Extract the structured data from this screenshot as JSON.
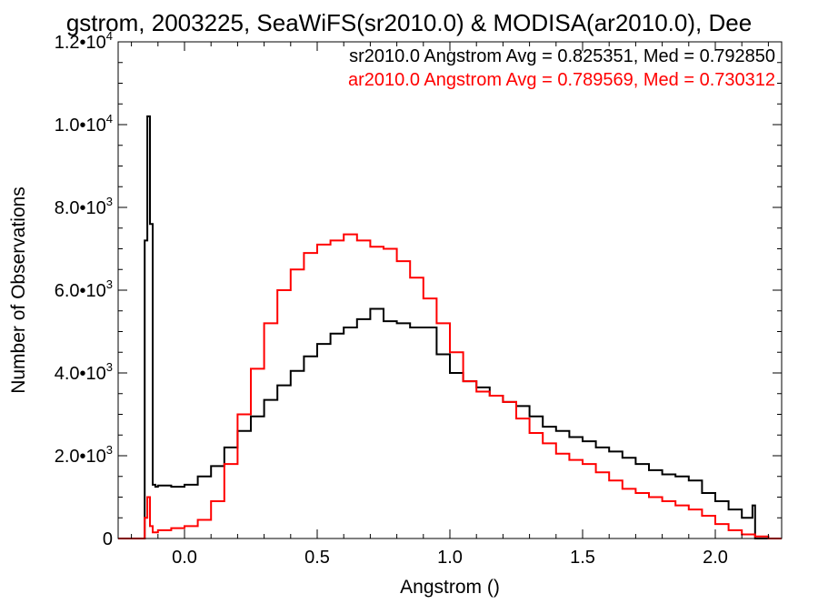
{
  "chart_data": {
    "type": "line",
    "title": "gstrom, 2003225, SeaWiFS(sr2010.0) & MODISA(ar2010.0), Dee",
    "xlabel": "Angstrom ()",
    "ylabel": "Number of Observations",
    "xlim": [
      -0.25,
      2.25
    ],
    "ylim": [
      0,
      12000
    ],
    "x_ticks": [
      {
        "value": 0.0,
        "label": "0.0"
      },
      {
        "value": 0.5,
        "label": "0.5"
      },
      {
        "value": 1.0,
        "label": "1.0"
      },
      {
        "value": 1.5,
        "label": "1.5"
      },
      {
        "value": 2.0,
        "label": "2.0"
      }
    ],
    "y_ticks": [
      {
        "value": 0,
        "label": "0",
        "exp": ""
      },
      {
        "value": 2000,
        "label": "2.0•10",
        "exp": "3"
      },
      {
        "value": 4000,
        "label": "4.0•10",
        "exp": "3"
      },
      {
        "value": 6000,
        "label": "6.0•10",
        "exp": "3"
      },
      {
        "value": 8000,
        "label": "8.0•10",
        "exp": "3"
      },
      {
        "value": 10000,
        "label": "1.0•10",
        "exp": "4"
      },
      {
        "value": 12000,
        "label": "1.2•10",
        "exp": "4"
      }
    ],
    "grid": false,
    "legend_placement": "top-right",
    "annotations": [
      {
        "text": "sr2010.0 Angstrom Avg = 0.825351, Med = 0.792850",
        "color": "#000000"
      },
      {
        "text": "ar2010.0 Angstrom Avg = 0.789569, Med = 0.730312",
        "color": "#ff0000"
      }
    ],
    "series": [
      {
        "color": "#000000",
        "x": [
          -0.25,
          -0.16,
          -0.15,
          -0.14,
          -0.13,
          -0.12,
          -0.11,
          -0.1,
          -0.05,
          0.0,
          0.05,
          0.1,
          0.15,
          0.2,
          0.25,
          0.3,
          0.35,
          0.4,
          0.45,
          0.5,
          0.55,
          0.6,
          0.65,
          0.7,
          0.75,
          0.8,
          0.85,
          0.9,
          0.95,
          1.0,
          1.05,
          1.1,
          1.15,
          1.2,
          1.25,
          1.3,
          1.35,
          1.4,
          1.45,
          1.5,
          1.55,
          1.6,
          1.65,
          1.7,
          1.75,
          1.8,
          1.85,
          1.9,
          1.95,
          2.0,
          2.05,
          2.1,
          2.14,
          2.15,
          2.25
        ],
        "y": [
          0,
          0,
          7200,
          10200,
          7600,
          1300,
          1250,
          1280,
          1250,
          1300,
          1500,
          1750,
          2200,
          2600,
          2950,
          3350,
          3700,
          4050,
          4400,
          4700,
          4950,
          5100,
          5300,
          5550,
          5250,
          5200,
          5100,
          5100,
          4450,
          4000,
          3800,
          3650,
          3450,
          3300,
          3200,
          2950,
          2700,
          2600,
          2450,
          2350,
          2200,
          2100,
          1950,
          1800,
          1650,
          1550,
          1500,
          1400,
          1100,
          900,
          700,
          500,
          800,
          0,
          0
        ]
      },
      {
        "color": "#ff0000",
        "x": [
          -0.25,
          -0.16,
          -0.15,
          -0.14,
          -0.13,
          -0.12,
          -0.1,
          -0.05,
          0.0,
          0.05,
          0.1,
          0.15,
          0.2,
          0.25,
          0.3,
          0.35,
          0.4,
          0.45,
          0.5,
          0.55,
          0.6,
          0.65,
          0.7,
          0.75,
          0.8,
          0.85,
          0.9,
          0.95,
          1.0,
          1.05,
          1.1,
          1.15,
          1.2,
          1.25,
          1.3,
          1.35,
          1.4,
          1.45,
          1.5,
          1.55,
          1.6,
          1.65,
          1.7,
          1.75,
          1.8,
          1.85,
          1.9,
          1.95,
          2.0,
          2.05,
          2.1,
          2.15,
          2.2,
          2.25
        ],
        "y": [
          0,
          0,
          500,
          1000,
          300,
          150,
          200,
          250,
          300,
          450,
          900,
          1800,
          3000,
          4100,
          5200,
          6000,
          6500,
          6900,
          7100,
          7200,
          7350,
          7200,
          7050,
          7000,
          6700,
          6300,
          5800,
          5200,
          4500,
          3800,
          3550,
          3450,
          3300,
          2900,
          2550,
          2300,
          2050,
          1900,
          1800,
          1600,
          1400,
          1200,
          1100,
          1000,
          900,
          800,
          700,
          550,
          350,
          200,
          100,
          50,
          0,
          0
        ]
      }
    ]
  }
}
